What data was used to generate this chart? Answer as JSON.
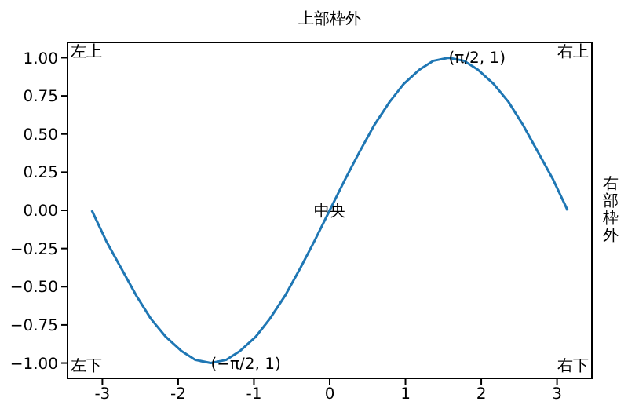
{
  "chart_data": {
    "type": "line",
    "title": "上部枠外",
    "y2label": "右部枠外",
    "x": [
      -3.14,
      -2.95,
      -2.75,
      -2.55,
      -2.36,
      -2.16,
      -1.96,
      -1.77,
      -1.57,
      -1.37,
      -1.18,
      -0.98,
      -0.79,
      -0.59,
      -0.39,
      -0.2,
      0,
      0.2,
      0.39,
      0.59,
      0.79,
      0.98,
      1.18,
      1.37,
      1.57,
      1.77,
      1.96,
      2.16,
      2.36,
      2.55,
      2.75,
      2.95,
      3.14
    ],
    "series": [
      {
        "color": "#1f77b4",
        "values": [
          0,
          -0.2,
          -0.38,
          -0.56,
          -0.71,
          -0.83,
          -0.92,
          -0.98,
          -1,
          -0.98,
          -0.92,
          -0.83,
          -0.71,
          -0.56,
          -0.38,
          -0.2,
          0,
          0.2,
          0.38,
          0.56,
          0.71,
          0.83,
          0.92,
          0.98,
          1,
          0.98,
          0.92,
          0.83,
          0.71,
          0.56,
          0.38,
          0.2,
          0
        ]
      }
    ],
    "xlim": [
      -3.46,
      3.46
    ],
    "xticks": [
      -3,
      -2,
      -1,
      0,
      1,
      2,
      3
    ],
    "ylim": [
      -1.1,
      1.1
    ],
    "yticks": [
      {
        "value": -1,
        "label": "−1.00"
      },
      {
        "value": -0.75,
        "label": "−0.75"
      },
      {
        "value": -0.5,
        "label": "−0.50"
      },
      {
        "value": -0.25,
        "label": "−0.25"
      },
      {
        "value": 0,
        "label": "0.00"
      },
      {
        "value": 0.25,
        "label": "0.25"
      },
      {
        "value": 0.5,
        "label": "0.50"
      },
      {
        "value": 0.75,
        "label": "0.75"
      },
      {
        "value": 1,
        "label": "1.00"
      }
    ],
    "grid": false,
    "marker": "none",
    "line_style": "solid",
    "legend": false,
    "annotations": [
      "左上",
      "右上",
      "左下",
      "右下",
      {
        "text": "中央",
        "x": 0,
        "y": 0
      },
      {
        "text": "(π/2, 1)",
        "x": 1.57,
        "y": 1
      },
      {
        "text": "(−π/2, 1)",
        "x": -1.57,
        "y": -1
      }
    ]
  }
}
